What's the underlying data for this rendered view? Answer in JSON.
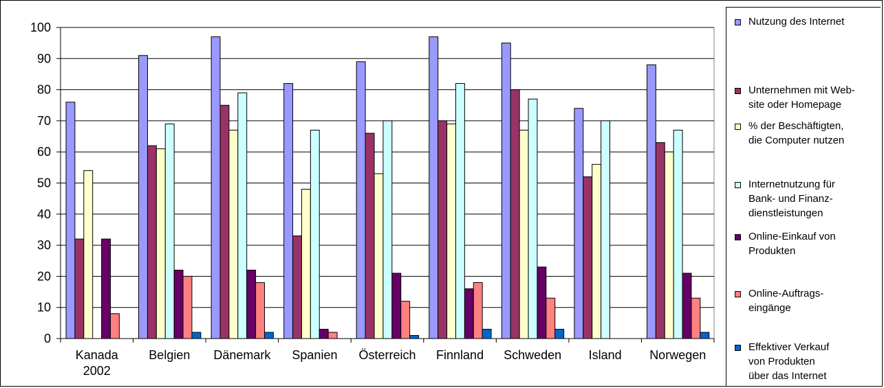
{
  "chart_data": {
    "type": "bar",
    "categories": [
      "Kanada\n2002",
      "Belgien",
      "Dänemark",
      "Spanien",
      "Österreich",
      "Finnland",
      "Schweden",
      "Island",
      "Norwegen"
    ],
    "ylim": [
      0,
      100
    ],
    "yticks": [
      "0",
      "10",
      "20",
      "30",
      "40",
      "50",
      "60",
      "70",
      "80",
      "90",
      "100"
    ],
    "grid": true,
    "legend_position": "right",
    "series": [
      {
        "name": "Nutzung des Internet",
        "color": "#9999ff",
        "values": [
          76,
          91,
          97,
          82,
          89,
          97,
          95,
          74,
          88
        ]
      },
      {
        "name": "Unternehmen mit Web-\nsite oder Homepage",
        "color": "#993366",
        "values": [
          32,
          62,
          75,
          33,
          66,
          70,
          80,
          52,
          63
        ]
      },
      {
        "name": "% der Beschäftigten,\ndie Computer nutzen",
        "color": "#ffffcc",
        "values": [
          54,
          61,
          67,
          48,
          53,
          69,
          67,
          56,
          60
        ]
      },
      {
        "name": "Internetnutzung für\nBank- und Finanz-\ndienstleistungen",
        "color": "#ccffff",
        "values": [
          null,
          69,
          79,
          67,
          70,
          82,
          77,
          70,
          67
        ]
      },
      {
        "name": "Online-Einkauf von\nProdukten",
        "color": "#660066",
        "values": [
          32,
          22,
          22,
          3,
          21,
          16,
          23,
          null,
          21
        ]
      },
      {
        "name": "Online-Auftrags-\neingänge",
        "color": "#ff8080",
        "values": [
          8,
          20,
          18,
          2,
          12,
          18,
          13,
          null,
          13
        ]
      },
      {
        "name": "Effektiver Verkauf\nvon Produkten\nüber das Internet",
        "color": "#0066cc",
        "values": [
          null,
          2,
          2,
          null,
          1,
          3,
          3,
          null,
          2
        ]
      }
    ]
  }
}
